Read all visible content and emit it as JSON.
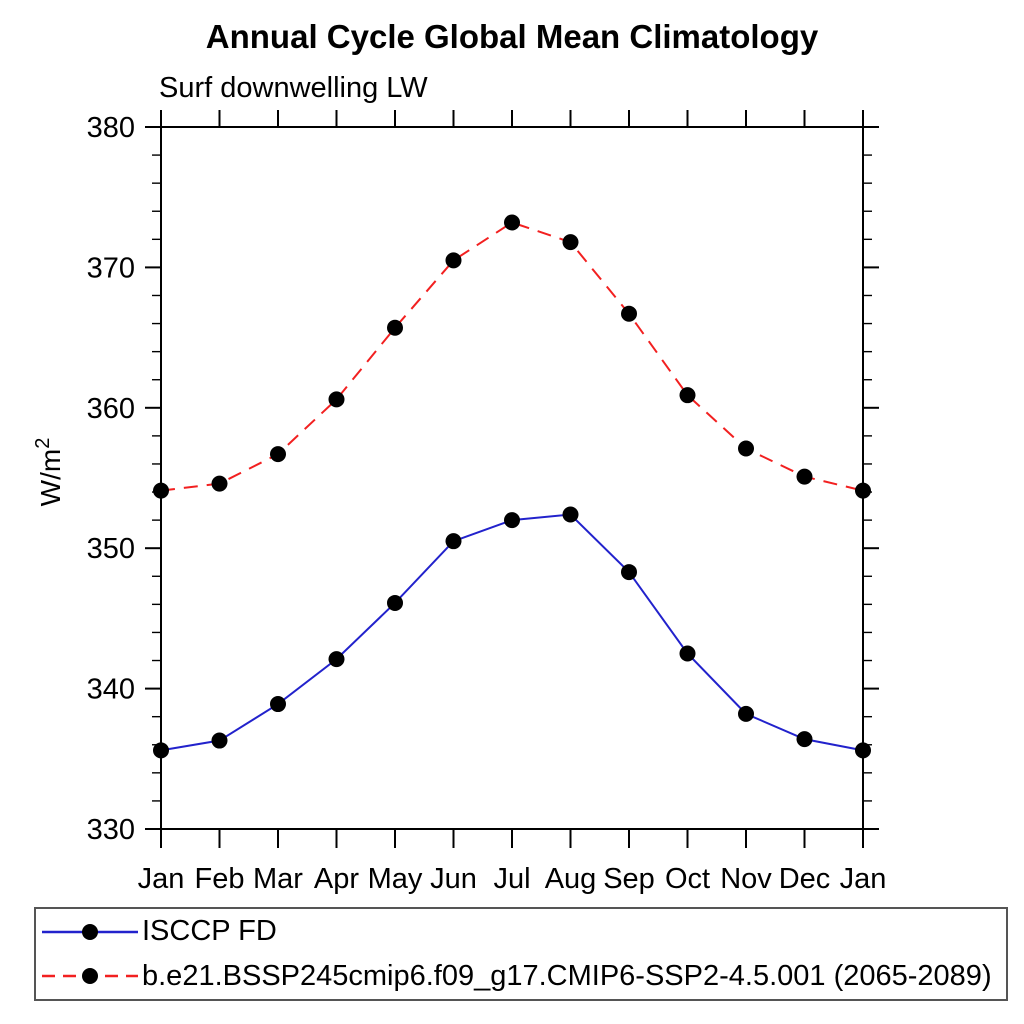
{
  "chart_data": {
    "type": "line",
    "title": "Annual Cycle Global Mean Climatology",
    "subtitle": "Surf downwelling LW",
    "xlabel": "",
    "ylabel": "W/m²",
    "ylabel_base": "W/m",
    "ylabel_sup": "2",
    "x_tick_labels": [
      "Jan",
      "Feb",
      "Mar",
      "Apr",
      "May",
      "Jun",
      "Jul",
      "Aug",
      "Sep",
      "Oct",
      "Nov",
      "Dec",
      "Jan"
    ],
    "ylim": [
      330,
      380
    ],
    "y_major_tick_step": 10,
    "y_minor_tick_step": 2,
    "y_major_tick_labels": [
      "330",
      "340",
      "350",
      "360",
      "370",
      "380"
    ],
    "grid": false,
    "legend_position": "bottom-left-box",
    "axis_color": "#000000",
    "series": [
      {
        "name": "ISCCP FD",
        "style": "solid",
        "color": "#2222cc",
        "marker": "filled-circle",
        "marker_color": "#000000",
        "values": [
          335.6,
          336.3,
          338.9,
          342.1,
          346.1,
          350.5,
          352.0,
          352.4,
          348.3,
          342.5,
          338.2,
          336.4,
          335.6
        ]
      },
      {
        "name": "b.e21.BSSP245cmip6.f09_g17.CMIP6-SSP2-4.5.001 (2065-2089)",
        "style": "dashed",
        "color": "#f22020",
        "marker": "filled-circle",
        "marker_color": "#000000",
        "values": [
          354.1,
          354.6,
          356.7,
          360.6,
          365.7,
          370.5,
          373.2,
          371.8,
          366.7,
          360.9,
          357.1,
          355.1,
          354.1
        ]
      }
    ]
  }
}
